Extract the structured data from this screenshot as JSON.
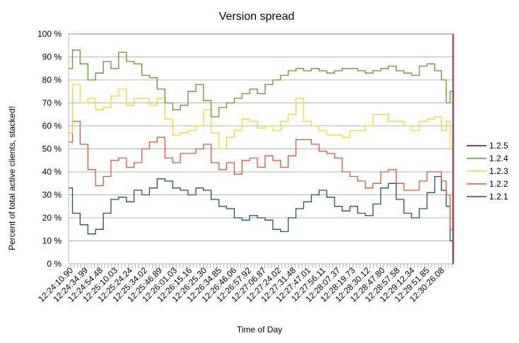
{
  "chart_data": {
    "type": "area",
    "stacked": true,
    "title": "Version spread",
    "xlabel": "Time of Day",
    "ylabel": "Percent of total active clients, stacked!",
    "ylim": [
      0,
      100
    ],
    "yticks": [
      "0 %",
      "10 %",
      "20 %",
      "30 %",
      "40 %",
      "50 %",
      "60 %",
      "70 %",
      "80 %",
      "90 %",
      "100 %"
    ],
    "grid": true,
    "legend_position": "right",
    "xticks": [
      "12:24:10.90",
      "12:24:34.99",
      "12:24:54.48",
      "12:25:10.03",
      "12:25:24.24",
      "12:25:34.02",
      "12:25:46.89",
      "12:26:01.03",
      "12:26:15.16",
      "12:26:25.30",
      "12:26:34.85",
      "12:26:46.06",
      "12:26:57.92",
      "12:27:06.87",
      "12:27:24.02",
      "12:27:31.48",
      "12:27:47.01",
      "12:27:56.11",
      "12:28:07.37",
      "12:28:19.73",
      "12:28:30.12",
      "12:28:47.80",
      "12:28:57.58",
      "12:29:12.34",
      "12:29:51.85",
      "12:30:26.08"
    ],
    "x_fraction": [
      0.0,
      0.02,
      0.04,
      0.06,
      0.08,
      0.1,
      0.12,
      0.14,
      0.16,
      0.18,
      0.2,
      0.22,
      0.24,
      0.26,
      0.28,
      0.3,
      0.32,
      0.34,
      0.36,
      0.38,
      0.4,
      0.42,
      0.44,
      0.46,
      0.48,
      0.5,
      0.52,
      0.54,
      0.56,
      0.58,
      0.6,
      0.62,
      0.64,
      0.66,
      0.68,
      0.7,
      0.72,
      0.74,
      0.76,
      0.78,
      0.8,
      0.82,
      0.84,
      0.86,
      0.88,
      0.9,
      0.92,
      0.94,
      0.96,
      0.975,
      0.985,
      0.995,
      1.0
    ],
    "series": [
      {
        "name": "1.2.1",
        "color": "#1f4e79",
        "values": [
          33,
          22,
          17,
          13,
          15,
          22,
          28,
          29,
          27,
          32,
          30,
          33,
          37,
          36,
          33,
          32,
          30,
          33,
          32,
          28,
          25,
          24,
          20,
          19,
          21,
          20,
          19,
          15,
          14,
          20,
          24,
          27,
          30,
          32,
          29,
          25,
          23,
          25,
          22,
          21,
          26,
          33,
          35,
          28,
          22,
          20,
          24,
          31,
          38,
          32,
          25,
          10,
          0
        ]
      },
      {
        "name": "1.2.2",
        "color": "#e8542d",
        "values": [
          53,
          62,
          52,
          41,
          34,
          38,
          45,
          46,
          42,
          44,
          50,
          53,
          55,
          46,
          44,
          48,
          48,
          50,
          52,
          44,
          41,
          44,
          39,
          45,
          46,
          42,
          47,
          45,
          42,
          47,
          54,
          54,
          52,
          49,
          48,
          46,
          40,
          38,
          36,
          33,
          35,
          40,
          41,
          35,
          32,
          32,
          36,
          40,
          40,
          36,
          30,
          15,
          0
        ]
      },
      {
        "name": "1.2.3",
        "color": "#ffd320",
        "values": [
          57,
          78,
          70,
          72,
          67,
          68,
          73,
          76,
          69,
          72,
          72,
          69,
          72,
          63,
          56,
          57,
          58,
          60,
          67,
          57,
          50,
          55,
          58,
          63,
          62,
          59,
          60,
          58,
          62,
          65,
          72,
          62,
          60,
          58,
          56,
          56,
          55,
          58,
          58,
          60,
          65,
          65,
          62,
          62,
          60,
          58,
          62,
          63,
          64,
          58,
          62,
          50,
          0
        ]
      },
      {
        "name": "1.2.4",
        "color": "#5b9a28",
        "values": [
          85,
          93,
          87,
          80,
          83,
          88,
          85,
          92,
          88,
          87,
          82,
          81,
          76,
          70,
          67,
          69,
          75,
          78,
          71,
          64,
          68,
          70,
          72,
          74,
          76,
          74,
          78,
          80,
          82,
          84,
          85,
          84,
          85,
          84,
          83,
          84,
          85,
          85,
          84,
          83,
          84,
          85,
          86,
          84,
          83,
          82,
          86,
          87,
          84,
          80,
          70,
          75,
          0
        ]
      },
      {
        "name": "1.2.5",
        "color": "#7e0021",
        "values": [
          100,
          100,
          100,
          100,
          100,
          100,
          100,
          100,
          100,
          100,
          100,
          100,
          100,
          100,
          100,
          100,
          100,
          100,
          100,
          100,
          100,
          100,
          100,
          100,
          100,
          100,
          100,
          100,
          100,
          100,
          100,
          100,
          100,
          100,
          100,
          100,
          100,
          100,
          100,
          100,
          100,
          100,
          100,
          100,
          100,
          100,
          100,
          100,
          100,
          100,
          100,
          100,
          0
        ]
      }
    ],
    "legend_order": [
      "1.2.5",
      "1.2.4",
      "1.2.3",
      "1.2.2",
      "1.2.1"
    ]
  }
}
